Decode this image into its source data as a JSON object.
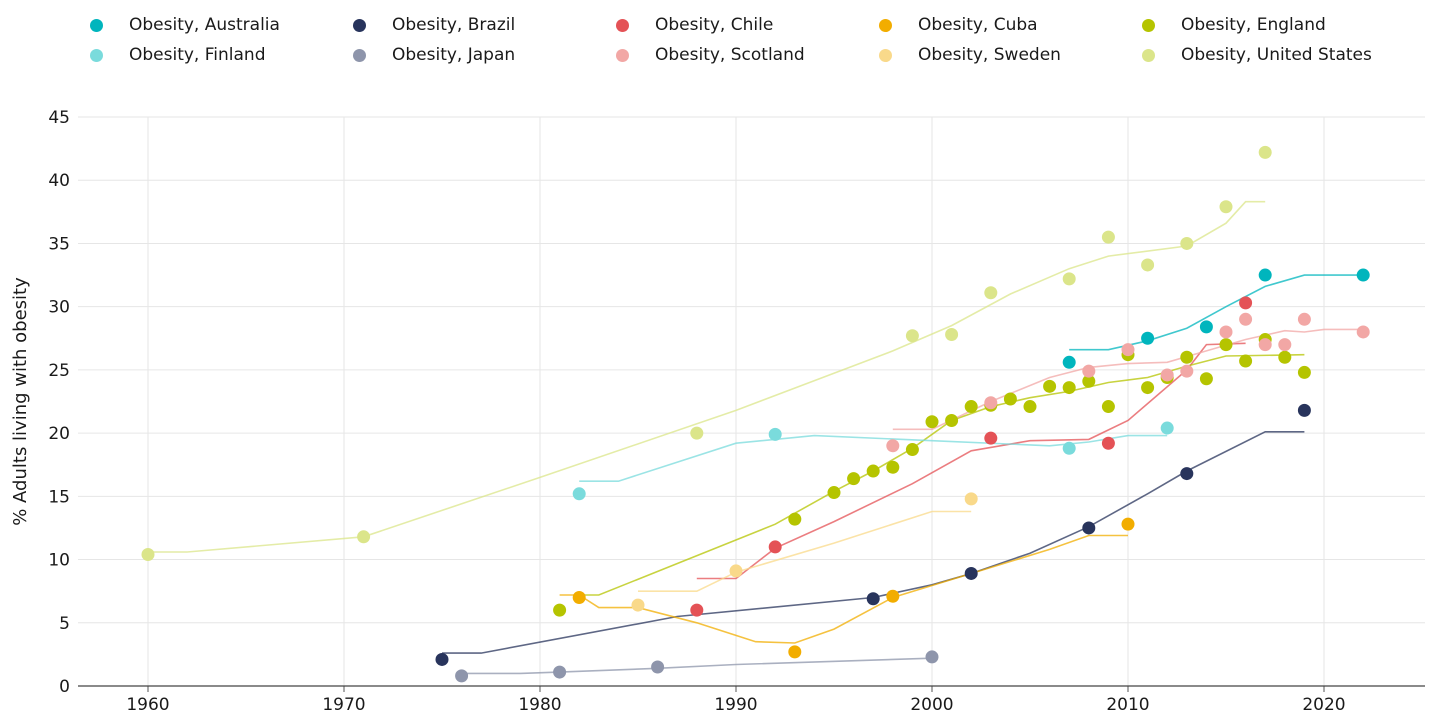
{
  "chart_data": {
    "type": "scatter",
    "title": "",
    "xlabel": "",
    "ylabel": "% Adults living with obesity",
    "xlim": [
      1955,
      2026
    ],
    "ylim": [
      0,
      45
    ],
    "x_ticks": [
      1960,
      1970,
      1980,
      1990,
      2000,
      2010,
      2020
    ],
    "y_ticks": [
      0,
      5,
      10,
      15,
      20,
      25,
      30,
      35,
      40,
      45
    ],
    "grid": "vertical and horizontal",
    "legend_position": "top",
    "series": [
      {
        "name": "Obesity, Australia",
        "color": "#00b5bd",
        "points": [
          [
            2007,
            25.6
          ],
          [
            2011,
            27.5
          ],
          [
            2014,
            28.4
          ],
          [
            2017,
            32.5
          ],
          [
            2022,
            32.5
          ]
        ],
        "trend": [
          [
            2007,
            26.6
          ],
          [
            2009,
            26.6
          ],
          [
            2011,
            27.3
          ],
          [
            2013,
            28.3
          ],
          [
            2015,
            30.0
          ],
          [
            2017,
            31.6
          ],
          [
            2019,
            32.5
          ],
          [
            2022,
            32.5
          ]
        ]
      },
      {
        "name": "Obesity, Brazil",
        "color": "#28345c",
        "points": [
          [
            1975,
            2.1
          ],
          [
            1997,
            6.9
          ],
          [
            2002,
            8.9
          ],
          [
            2008,
            12.5
          ],
          [
            2013,
            16.8
          ],
          [
            2019,
            21.8
          ]
        ],
        "trend": [
          [
            1975,
            2.6
          ],
          [
            1977,
            2.6
          ],
          [
            1987,
            5.5
          ],
          [
            1997,
            7.0
          ],
          [
            2000,
            8.0
          ],
          [
            2002,
            8.9
          ],
          [
            2005,
            10.5
          ],
          [
            2008,
            12.6
          ],
          [
            2011,
            15.2
          ],
          [
            2013,
            17.0
          ],
          [
            2017,
            20.1
          ],
          [
            2019,
            20.1
          ]
        ]
      },
      {
        "name": "Obesity, Chile",
        "color": "#e45256",
        "points": [
          [
            1988,
            6.0
          ],
          [
            1992,
            11.0
          ],
          [
            2003,
            19.6
          ],
          [
            2009,
            19.2
          ],
          [
            2016,
            30.3
          ]
        ],
        "trend": [
          [
            1988,
            8.5
          ],
          [
            1990,
            8.5
          ],
          [
            1992,
            10.9
          ],
          [
            1995,
            13.0
          ],
          [
            1999,
            16.0
          ],
          [
            2002,
            18.6
          ],
          [
            2005,
            19.4
          ],
          [
            2008,
            19.5
          ],
          [
            2010,
            21.0
          ],
          [
            2013,
            25.0
          ],
          [
            2014,
            27.0
          ],
          [
            2016,
            27.1
          ]
        ]
      },
      {
        "name": "Obesity, Cuba",
        "color": "#f2ad00",
        "points": [
          [
            1982,
            7.0
          ],
          [
            1993,
            2.7
          ],
          [
            1998,
            7.1
          ],
          [
            2010,
            12.8
          ]
        ],
        "trend": [
          [
            1981,
            7.2
          ],
          [
            1982,
            7.2
          ],
          [
            1983,
            6.2
          ],
          [
            1985,
            6.2
          ],
          [
            1988,
            5.0
          ],
          [
            1991,
            3.5
          ],
          [
            1993,
            3.4
          ],
          [
            1995,
            4.5
          ],
          [
            1998,
            7.0
          ],
          [
            2002,
            8.9
          ],
          [
            2006,
            10.8
          ],
          [
            2008,
            11.9
          ],
          [
            2010,
            11.9
          ]
        ]
      },
      {
        "name": "Obesity, England",
        "color": "#b5c400",
        "points": [
          [
            1981,
            6.0
          ],
          [
            1993,
            13.2
          ],
          [
            1995,
            15.3
          ],
          [
            1996,
            16.4
          ],
          [
            1997,
            17.0
          ],
          [
            1998,
            17.3
          ],
          [
            1999,
            18.7
          ],
          [
            2000,
            20.9
          ],
          [
            2001,
            21.0
          ],
          [
            2002,
            22.1
          ],
          [
            2003,
            22.2
          ],
          [
            2004,
            22.7
          ],
          [
            2005,
            22.1
          ],
          [
            2006,
            23.7
          ],
          [
            2007,
            23.6
          ],
          [
            2008,
            24.1
          ],
          [
            2009,
            22.1
          ],
          [
            2010,
            26.2
          ],
          [
            2011,
            23.6
          ],
          [
            2012,
            24.4
          ],
          [
            2013,
            26.0
          ],
          [
            2014,
            24.3
          ],
          [
            2015,
            27.0
          ],
          [
            2016,
            25.7
          ],
          [
            2017,
            27.4
          ],
          [
            2018,
            26.0
          ],
          [
            2019,
            24.8
          ]
        ],
        "trend": [
          [
            1982,
            7.2
          ],
          [
            1983,
            7.2
          ],
          [
            1992,
            12.8
          ],
          [
            1995,
            15.4
          ],
          [
            1997,
            17.0
          ],
          [
            1999,
            18.8
          ],
          [
            2001,
            21.0
          ],
          [
            2003,
            22.1
          ],
          [
            2005,
            22.8
          ],
          [
            2007,
            23.3
          ],
          [
            2009,
            24.0
          ],
          [
            2011,
            24.4
          ],
          [
            2013,
            25.3
          ],
          [
            2015,
            26.1
          ],
          [
            2019,
            26.2
          ]
        ]
      },
      {
        "name": "Obesity, Finland",
        "color": "#7adbdc",
        "points": [
          [
            1982,
            15.2
          ],
          [
            1992,
            19.9
          ],
          [
            2007,
            18.8
          ],
          [
            2012,
            20.4
          ]
        ],
        "trend": [
          [
            1982,
            16.2
          ],
          [
            1984,
            16.2
          ],
          [
            1990,
            19.2
          ],
          [
            1994,
            19.8
          ],
          [
            2000,
            19.4
          ],
          [
            2006,
            19.0
          ],
          [
            2008,
            19.3
          ],
          [
            2010,
            19.8
          ],
          [
            2012,
            19.8
          ]
        ]
      },
      {
        "name": "Obesity, Japan",
        "color": "#8e95ab",
        "points": [
          [
            1976,
            0.8
          ],
          [
            1981,
            1.1
          ],
          [
            1986,
            1.5
          ],
          [
            2000,
            2.3
          ]
        ],
        "trend": [
          [
            1976,
            1.0
          ],
          [
            1979,
            1.0
          ],
          [
            1981,
            1.1
          ],
          [
            1986,
            1.4
          ],
          [
            1990,
            1.7
          ],
          [
            2000,
            2.2
          ]
        ]
      },
      {
        "name": "Obesity, Scotland",
        "color": "#f2a7a5",
        "points": [
          [
            1998,
            19.0
          ],
          [
            2003,
            22.4
          ],
          [
            2008,
            24.9
          ],
          [
            2010,
            26.6
          ],
          [
            2012,
            24.6
          ],
          [
            2013,
            24.9
          ],
          [
            2015,
            28.0
          ],
          [
            2016,
            29.0
          ],
          [
            2017,
            27.0
          ],
          [
            2018,
            27.0
          ],
          [
            2019,
            29.0
          ],
          [
            2022,
            28.0
          ]
        ],
        "trend": [
          [
            1998,
            20.3
          ],
          [
            2000,
            20.3
          ],
          [
            2003,
            22.5
          ],
          [
            2006,
            24.4
          ],
          [
            2008,
            25.2
          ],
          [
            2010,
            25.5
          ],
          [
            2012,
            25.6
          ],
          [
            2014,
            26.5
          ],
          [
            2016,
            27.4
          ],
          [
            2018,
            28.1
          ],
          [
            2019,
            28.0
          ],
          [
            2020,
            28.2
          ],
          [
            2022,
            28.2
          ]
        ]
      },
      {
        "name": "Obesity, Sweden",
        "color": "#f9d98a",
        "points": [
          [
            1985,
            6.4
          ],
          [
            1990,
            9.1
          ],
          [
            2002,
            14.8
          ]
        ],
        "trend": [
          [
            1985,
            7.5
          ],
          [
            1988,
            7.5
          ],
          [
            1990,
            9.0
          ],
          [
            1995,
            11.3
          ],
          [
            2000,
            13.8
          ],
          [
            2002,
            13.8
          ]
        ]
      },
      {
        "name": "Obesity, United States",
        "color": "#dbe58a",
        "points": [
          [
            1960,
            10.4
          ],
          [
            1971,
            11.8
          ],
          [
            1988,
            20.0
          ],
          [
            1999,
            27.7
          ],
          [
            2001,
            27.8
          ],
          [
            2003,
            31.1
          ],
          [
            2007,
            32.2
          ],
          [
            2009,
            35.5
          ],
          [
            2011,
            33.3
          ],
          [
            2013,
            35.0
          ],
          [
            2015,
            37.9
          ],
          [
            2017,
            42.2
          ]
        ],
        "trend": [
          [
            1960,
            10.6
          ],
          [
            1962,
            10.6
          ],
          [
            1971,
            11.8
          ],
          [
            1980,
            16.5
          ],
          [
            1990,
            21.8
          ],
          [
            1998,
            26.5
          ],
          [
            2001,
            28.5
          ],
          [
            2004,
            31.0
          ],
          [
            2007,
            33.0
          ],
          [
            2009,
            34.0
          ],
          [
            2013,
            34.8
          ],
          [
            2015,
            36.6
          ],
          [
            2016,
            38.3
          ],
          [
            2017,
            38.3
          ]
        ]
      }
    ]
  }
}
